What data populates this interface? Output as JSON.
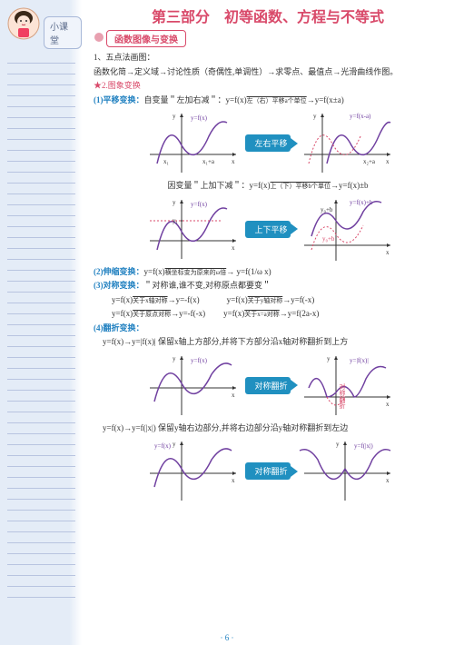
{
  "badge": "小课堂",
  "title": "第三部分　初等函数、方程与不等式",
  "section": "函数图像与变换",
  "item1_num": "1、五点法画图：",
  "item1_text": "函数化简→定义域→讨论性质（奇偶性,单调性）→求零点、最值点→光滑曲线作图。",
  "item2_star": "★2.图象变换",
  "t1_label": "(1)平移变换：",
  "t1_text": "自变量＂左加右减＂：y=f(x)",
  "t1_arrow": "左（右）平移a个单位",
  "t1_result": "→y=f(x±a)",
  "t1_yin": "因变量＂上加下减＂：y=f(x)",
  "t1_arrow2": "上（下）平移b个单位",
  "t1_result2": "→y=f(x)±b",
  "btn1": "左右平移",
  "btn2": "上下平移",
  "t2_label": "(2)伸缩变换：",
  "t2_text": "y=f(x)",
  "t2_arrow": "横坐标变为原来的ω倍",
  "t2_result": "→ y=f(1/ω x)",
  "t3_label": "(3)对称变换：",
  "t3_text": "＂对称谁,谁不变,对称原点都要变＂",
  "t3_1a": "y=f(x)",
  "t3_1b": "关于x轴对称",
  "t3_1c": "→y=-f(x)",
  "t3_2a": "y=f(x)",
  "t3_2b": "关于y轴对称",
  "t3_2c": "→y=f(-x)",
  "t3_3a": "y=f(x)",
  "t3_3b": "关于原点对称",
  "t3_3c": "→y=-f(-x)",
  "t3_4a": "y=f(x)",
  "t3_4b": "关于x=a对称",
  "t3_4c": "→y=f(2a-x)",
  "t4_label": "(4)翻折变换：",
  "t4_1": "y=f(x)→y=|f(x)| 保留x轴上方部分,并将下方部分沿x轴对称翻折到上方",
  "t4_2": "y=f(x)→y=f(|x|) 保留y轴右边部分,并将右边部分沿y轴对称翻折到左边",
  "btn3": "对称翻折",
  "btn4": "对称翻折",
  "page": "· 6 ·",
  "colors": {
    "curve": "#7040a0",
    "axis": "#333",
    "dash": "#d94a6a"
  }
}
